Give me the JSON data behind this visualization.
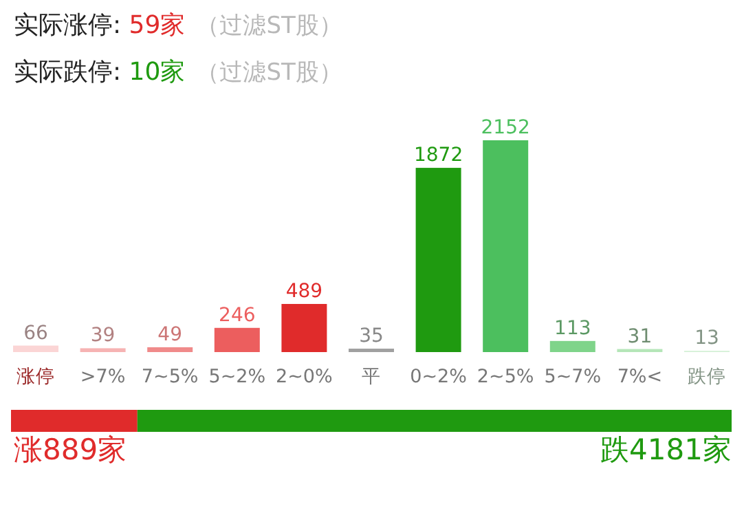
{
  "chart_data": [
    {
      "type": "bar",
      "title": "实际涨停: 59家",
      "subtitle": "实际跌停: 10家",
      "annotations": [
        "（过滤ST股）",
        "（过滤ST股）"
      ],
      "categories": [
        "涨停",
        ">7%",
        "7~5%",
        "5~2%",
        "2~0%",
        "平",
        "0~2%",
        "2~5%",
        "5~7%",
        "7%<",
        "跌停"
      ],
      "values": [
        66,
        39,
        49,
        246,
        489,
        35,
        1872,
        2152,
        113,
        31,
        13
      ],
      "colors": [
        "#fbd5d5",
        "#f6b3b3",
        "#f08a8a",
        "#ec5e5e",
        "#e02b2b",
        "#a0a0a0",
        "#1f9a10",
        "#4cbf5e",
        "#7fd48a",
        "#b5e6b8",
        "#d6f1d8"
      ],
      "data_labels": true
    },
    {
      "type": "bar",
      "orientation": "horizontal",
      "stacked": true,
      "categories": [
        null
      ],
      "series": [
        {
          "color": "#e02b2b",
          "values": [
            889
          ],
          "value_labels": [
            "涨889家"
          ]
        },
        {
          "color": "#1f9a10",
          "values": [
            4181
          ],
          "value_labels": [
            "跌4181家"
          ]
        }
      ]
    }
  ]
}
